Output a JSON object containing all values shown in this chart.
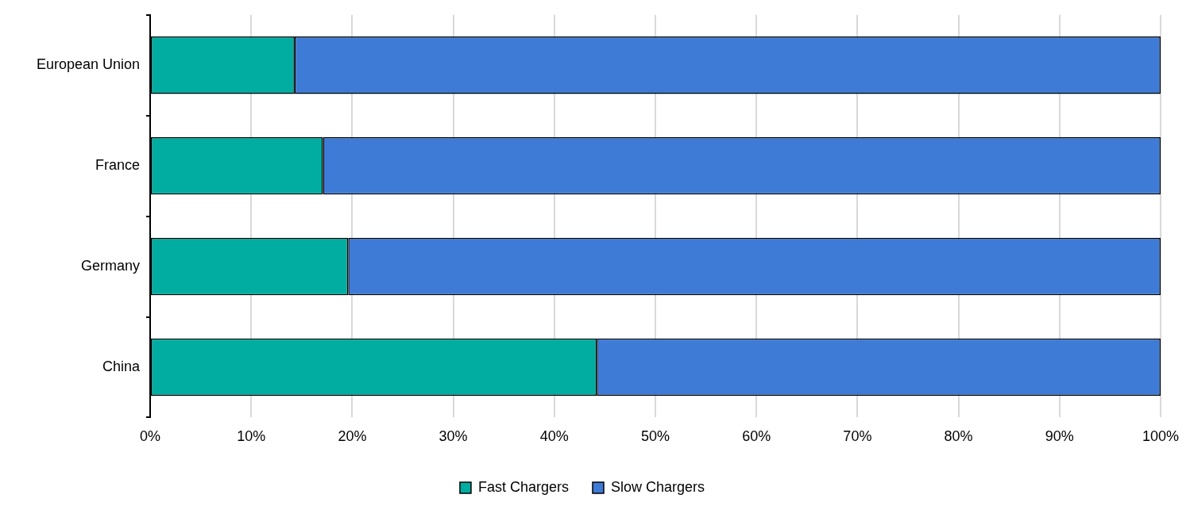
{
  "chart_data": {
    "type": "bar",
    "orientation": "horizontal",
    "stacked": true,
    "categories": [
      "European Union",
      "France",
      "Germany",
      "China"
    ],
    "series": [
      {
        "name": "Fast Chargers",
        "color": "#00ada0",
        "values": [
          14.3,
          17.1,
          19.6,
          44.2
        ]
      },
      {
        "name": "Slow Chargers",
        "color": "#3e7bd6",
        "values": [
          85.7,
          82.9,
          80.4,
          55.8
        ]
      }
    ],
    "xlim": [
      0,
      100
    ],
    "xticks": [
      {
        "value": 0,
        "label": "0%"
      },
      {
        "value": 10,
        "label": "10%"
      },
      {
        "value": 20,
        "label": "20%"
      },
      {
        "value": 30,
        "label": "30%"
      },
      {
        "value": 40,
        "label": "40%"
      },
      {
        "value": 50,
        "label": "50%"
      },
      {
        "value": 60,
        "label": "60%"
      },
      {
        "value": 70,
        "label": "70%"
      },
      {
        "value": 80,
        "label": "80%"
      },
      {
        "value": 90,
        "label": "90%"
      },
      {
        "value": 100,
        "label": "100%"
      }
    ],
    "grid": "x",
    "legend": "bottom"
  }
}
